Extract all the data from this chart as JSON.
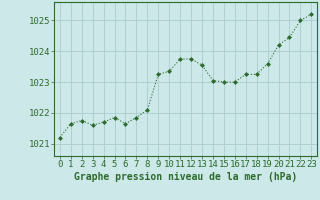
{
  "x": [
    0,
    1,
    2,
    3,
    4,
    5,
    6,
    7,
    8,
    9,
    10,
    11,
    12,
    13,
    14,
    15,
    16,
    17,
    18,
    19,
    20,
    21,
    22,
    23
  ],
  "y": [
    1021.2,
    1021.65,
    1021.75,
    1021.6,
    1021.7,
    1021.85,
    1021.65,
    1021.85,
    1022.1,
    1023.25,
    1023.35,
    1023.75,
    1023.75,
    1023.55,
    1023.05,
    1023.0,
    1023.0,
    1023.25,
    1023.25,
    1023.6,
    1024.2,
    1024.45,
    1025.0,
    1025.2
  ],
  "line_color": "#2d6a2d",
  "marker_color": "#2d6a2d",
  "bg_color": "#cce8e8",
  "grid_color": "#aacccc",
  "ylabel_ticks": [
    1021,
    1022,
    1023,
    1024,
    1025
  ],
  "xlabel": "Graphe pression niveau de la mer (hPa)",
  "xlabel_fontsize": 7,
  "tick_fontsize": 6.5,
  "ylim": [
    1020.6,
    1025.6
  ],
  "xlim": [
    -0.5,
    23.5
  ]
}
